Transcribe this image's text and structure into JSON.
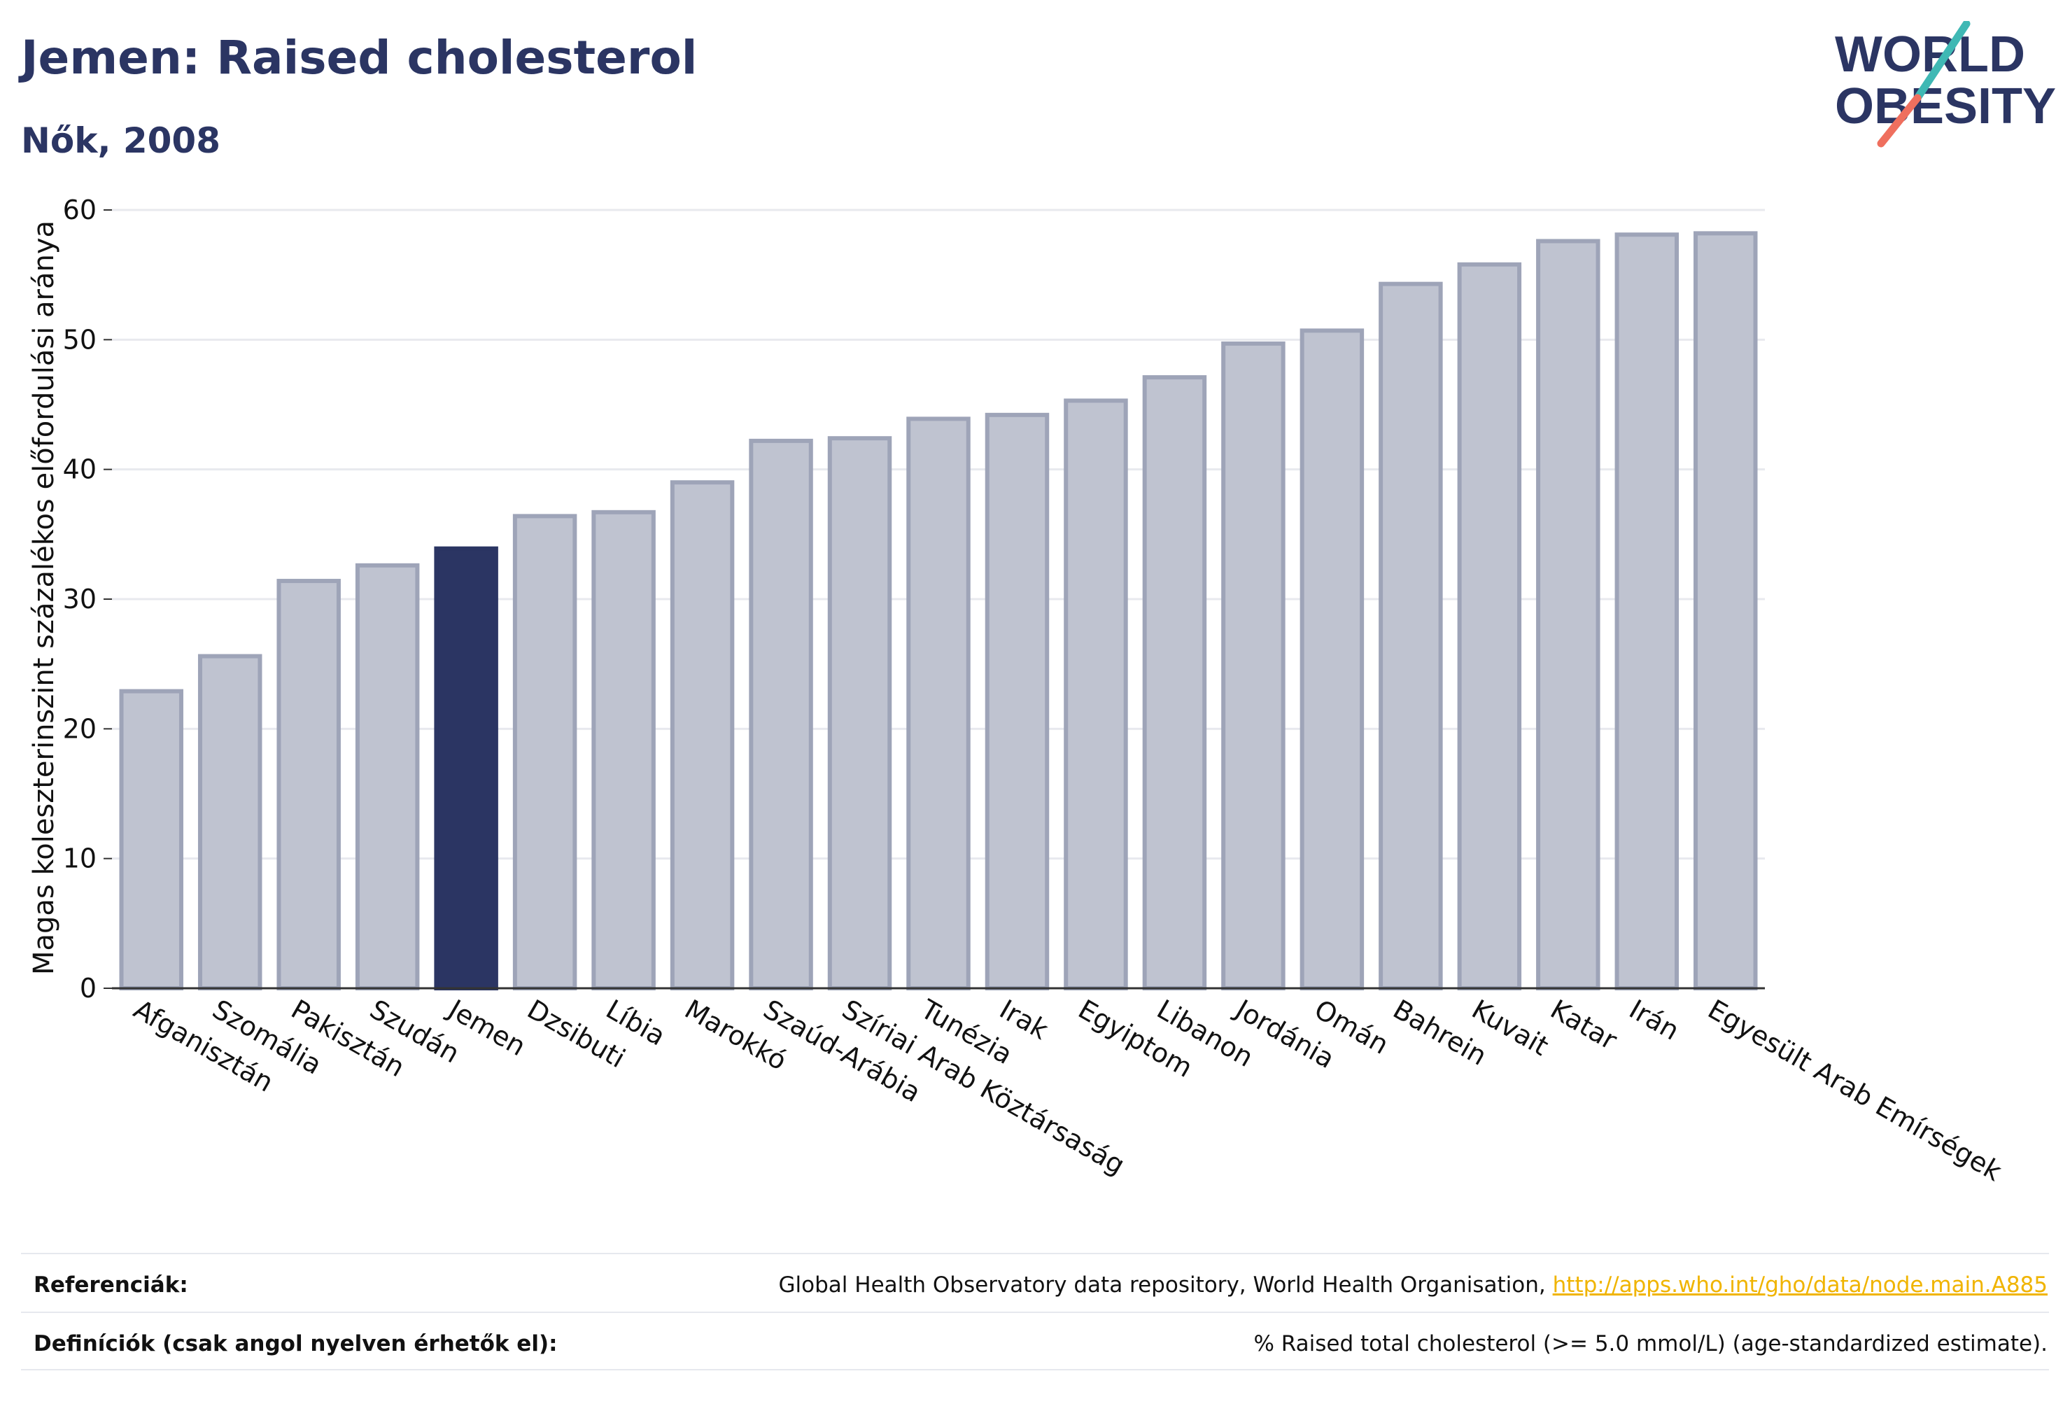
{
  "header": {
    "title": "Jemen: Raised cholesterol",
    "subtitle": "Nők, 2008"
  },
  "logo": {
    "line1": "WORLD",
    "line2": "OBESITY",
    "colors": {
      "text": "#2b3563",
      "teal": "#3fb8b4",
      "coral": "#ef6f5e"
    }
  },
  "chart_data": {
    "type": "bar",
    "ylabel": "Magas koleszterinszint százalékos előfordulási aránya",
    "xlabel": "",
    "ylim": [
      0,
      60
    ],
    "yticks": [
      0,
      10,
      20,
      30,
      40,
      50,
      60
    ],
    "grid": true,
    "highlight": "Jemen",
    "colors": {
      "bar": "#bfc3d0",
      "bar_border": "#9ea4b8",
      "highlight": "#2b3563",
      "grid": "#e8e9ee",
      "axis": "#333333"
    },
    "categories": [
      "Afganisztán",
      "Szomália",
      "Pakisztán",
      "Szudán",
      "Jemen",
      "Dzsibuti",
      "Líbia",
      "Marokkó",
      "Szaúd-Arábia",
      "Szíriai Arab Köztársaság",
      "Tunézia",
      "Irak",
      "Egyiptom",
      "Libanon",
      "Jordánia",
      "Omán",
      "Bahrein",
      "Kuvait",
      "Katar",
      "Irán",
      "Egyesült Arab Emírségek"
    ],
    "values": [
      22.9,
      25.6,
      31.4,
      32.6,
      33.9,
      36.4,
      36.7,
      39.0,
      42.2,
      42.4,
      43.9,
      44.2,
      45.3,
      47.1,
      49.7,
      50.7,
      54.3,
      55.8,
      57.6,
      58.1,
      58.2
    ]
  },
  "footer": {
    "references_label": "Referenciák:",
    "references_text": "Global Health Observatory data repository, World Health Organisation,",
    "references_link": "http://apps.who.int/gho/data/node.main.A885",
    "definitions_label": "Definíciók (csak angol nyelven érhetők el):",
    "definitions_text": "% Raised total cholesterol (>= 5.0 mmol/L) (age-standardized estimate)."
  }
}
